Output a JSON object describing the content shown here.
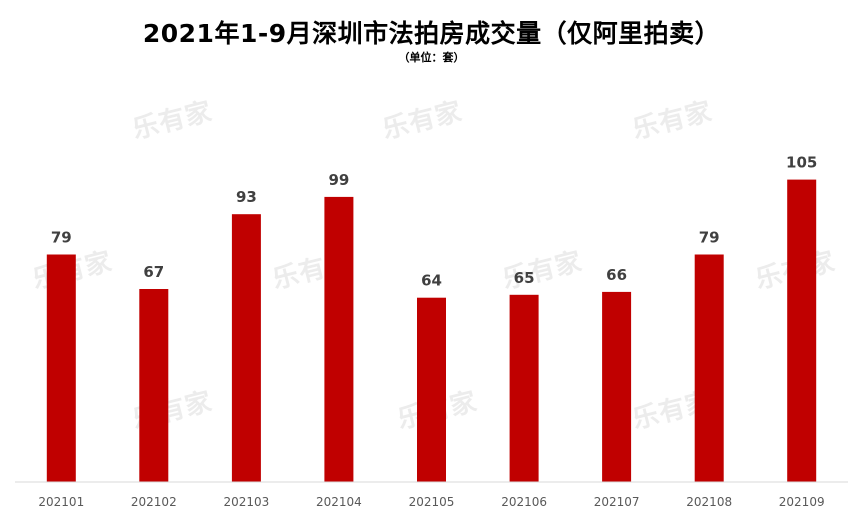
{
  "chart_data": {
    "type": "bar",
    "title": "2021年1-9月深圳市法拍房成交量（仅阿里拍卖）",
    "subtitle": "（单位：套）",
    "categories": [
      "202101",
      "202102",
      "202103",
      "202104",
      "202105",
      "202106",
      "202107",
      "202108",
      "202109"
    ],
    "values": [
      79,
      67,
      93,
      99,
      64,
      65,
      66,
      79,
      105
    ],
    "xlabel": "",
    "ylabel": "",
    "ylim": [
      0,
      115
    ],
    "bar_color": "#C00000",
    "axis_color": "#D9D9D9",
    "grid": false,
    "legend": "none"
  },
  "watermark": {
    "text": "乐有家"
  }
}
